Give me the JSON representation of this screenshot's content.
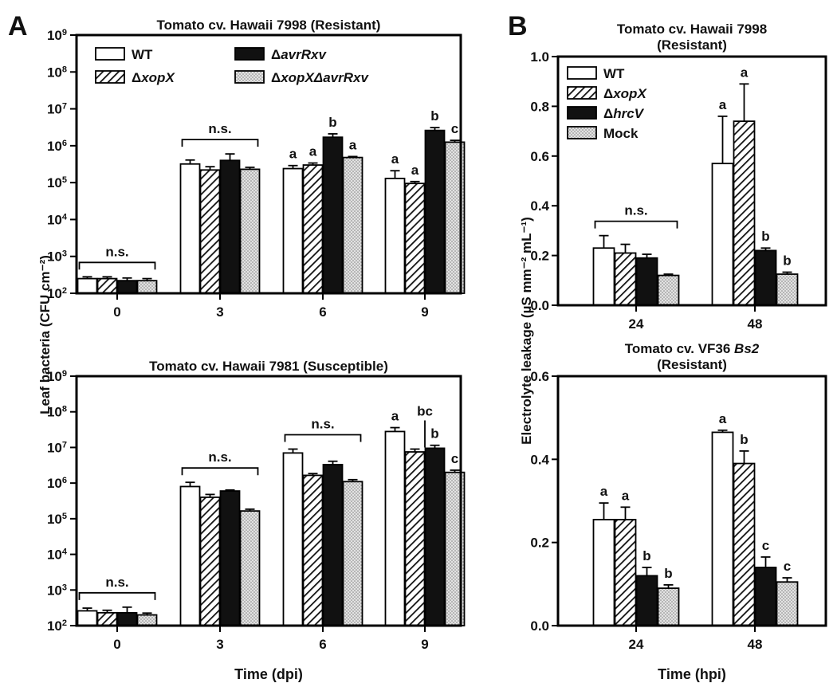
{
  "panel_labels": {
    "a": "A",
    "b": "B"
  },
  "axis_titles": {
    "a_y": "Leaf bacteria (CFU cm⁻²)",
    "b_y": "Electrolyte leakage (µS mm⁻² mL⁻¹)",
    "a_x": "Time (dpi)",
    "b_x": "Time (hpi)"
  },
  "colors": {
    "wt": "#ffffff",
    "fill_black": "#111111",
    "dots": "#d8d8d8"
  },
  "chart_data": [
    {
      "id": "a_top",
      "type": "bar",
      "scale": "log",
      "title": "Tomato cv. Hawaii 7998 (Resistant)",
      "xlabel": "",
      "ylabel": "Leaf bacteria (CFU cm-2)",
      "ylim": [
        100,
        1000000000
      ],
      "yticks": [
        {
          "b": "10",
          "e": "2"
        },
        {
          "b": "10",
          "e": "3"
        },
        {
          "b": "10",
          "e": "4"
        },
        {
          "b": "10",
          "e": "5"
        },
        {
          "b": "10",
          "e": "6"
        },
        {
          "b": "10",
          "e": "7"
        },
        {
          "b": "10",
          "e": "8"
        },
        {
          "b": "10",
          "e": "9"
        }
      ],
      "categories": [
        "0",
        "3",
        "6",
        "9"
      ],
      "legend": {
        "position": "top",
        "columns": 2
      },
      "series": [
        {
          "name": "WT",
          "prefix": "",
          "ital": "",
          "pattern": "white",
          "values": [
            250,
            320000,
            240000,
            130000
          ],
          "errors": [
            30,
            90000,
            50000,
            80000
          ],
          "letters": [
            "",
            "",
            "a",
            "a"
          ]
        },
        {
          "name": "ΔxopX",
          "prefix": "Δ",
          "ital": "xopX",
          "pattern": "hatch",
          "values": [
            250,
            220000,
            300000,
            95000
          ],
          "errors": [
            30,
            50000,
            40000,
            12000
          ],
          "letters": [
            "",
            "",
            "a",
            "a"
          ]
        },
        {
          "name": "ΔavrRxv",
          "prefix": "Δ",
          "ital": "avrRxv",
          "pattern": "black",
          "values": [
            220,
            400000,
            1700000,
            2600000
          ],
          "errors": [
            40,
            200000,
            400000,
            500000
          ],
          "letters": [
            "",
            "",
            "b",
            "b"
          ]
        },
        {
          "name": "ΔxopXΔavrRxv",
          "prefix": "Δ",
          "ital": "xopXΔavrRxv",
          "pattern": "dots",
          "values": [
            220,
            230000,
            480000,
            1250000
          ],
          "errors": [
            30,
            30000,
            30000,
            150000
          ],
          "letters": [
            "",
            "",
            "a",
            "c"
          ]
        }
      ],
      "brackets": [
        {
          "group": 0,
          "label": "n.s."
        },
        {
          "group": 1,
          "label": "n.s."
        }
      ]
    },
    {
      "id": "a_bottom",
      "type": "bar",
      "scale": "log",
      "title": "Tomato cv. Hawaii 7981 (Susceptible)",
      "xlabel": "Time (dpi)",
      "ylabel": "Leaf bacteria (CFU cm-2)",
      "ylim": [
        100,
        1000000000
      ],
      "yticks": [
        {
          "b": "10",
          "e": "2"
        },
        {
          "b": "10",
          "e": "3"
        },
        {
          "b": "10",
          "e": "4"
        },
        {
          "b": "10",
          "e": "5"
        },
        {
          "b": "10",
          "e": "6"
        },
        {
          "b": "10",
          "e": "7"
        },
        {
          "b": "10",
          "e": "8"
        },
        {
          "b": "10",
          "e": "9"
        }
      ],
      "categories": [
        "0",
        "3",
        "6",
        "9"
      ],
      "series": [
        {
          "name": "WT",
          "pattern": "white",
          "values": [
            260,
            800000,
            7000000,
            28000000
          ],
          "errors": [
            50,
            250000,
            2000000,
            8000000
          ],
          "letters": [
            "",
            "",
            "",
            "a"
          ]
        },
        {
          "name": "ΔxopX",
          "pattern": "hatch",
          "values": [
            230,
            400000,
            1650000,
            7500000
          ],
          "errors": [
            40,
            80000,
            200000,
            1500000
          ],
          "letters": [
            "",
            "",
            "",
            ""
          ]
        },
        {
          "name": "ΔavrRxv",
          "pattern": "black",
          "values": [
            230,
            600000,
            3300000,
            9500000
          ],
          "errors": [
            100,
            40000,
            800000,
            2000000
          ],
          "letters": [
            "",
            "",
            "",
            "b"
          ]
        },
        {
          "name": "ΔxopXΔavrRxv",
          "pattern": "dots",
          "values": [
            200,
            165000,
            1100000,
            2000000
          ],
          "errors": [
            25,
            20000,
            150000,
            300000
          ],
          "letters": [
            "",
            "",
            "",
            "c"
          ]
        }
      ],
      "brackets": [
        {
          "group": 0,
          "label": "n.s."
        },
        {
          "group": 1,
          "label": "n.s."
        },
        {
          "group": 2,
          "label": "n.s."
        }
      ],
      "annotation": {
        "label": "bc",
        "group": 3,
        "series": 1
      }
    },
    {
      "id": "b_top",
      "type": "bar",
      "scale": "linear",
      "title_lines": [
        "Tomato cv. Hawaii 7998",
        "(Resistant)"
      ],
      "xlabel": "",
      "ylabel": "Electrolyte leakage (µS mm-2 mL-1)",
      "ylim": [
        0,
        1.0
      ],
      "yticks": [
        "0.0",
        "0.2",
        "0.4",
        "0.6",
        "0.8",
        "1.0"
      ],
      "categories": [
        "24",
        "48"
      ],
      "legend": {
        "position": "top-left",
        "columns": 1
      },
      "series": [
        {
          "name": "WT",
          "prefix": "",
          "ital": "",
          "pattern": "white",
          "values": [
            0.23,
            0.57
          ],
          "errors": [
            0.05,
            0.19
          ],
          "letters": [
            "",
            "a"
          ]
        },
        {
          "name": "ΔxopX",
          "prefix": "Δ",
          "ital": "xopX",
          "pattern": "hatch",
          "values": [
            0.21,
            0.74
          ],
          "errors": [
            0.035,
            0.15
          ],
          "letters": [
            "",
            "a"
          ]
        },
        {
          "name": "ΔhrcV",
          "prefix": "Δ",
          "ital": "hrcV",
          "pattern": "black",
          "values": [
            0.19,
            0.22
          ],
          "errors": [
            0.015,
            0.01
          ],
          "letters": [
            "",
            "b"
          ]
        },
        {
          "name": "Mock",
          "prefix": "",
          "ital": "",
          "pattern": "dots",
          "values": [
            0.12,
            0.125
          ],
          "errors": [
            0.005,
            0.008
          ],
          "letters": [
            "",
            "b"
          ]
        }
      ],
      "brackets": [
        {
          "group": 0,
          "label": "n.s."
        }
      ]
    },
    {
      "id": "b_bottom",
      "type": "bar",
      "scale": "linear",
      "title_lines": [
        "Tomato cv. VF36 Bs2",
        "(Resistant)"
      ],
      "title_plain": "Tomato cv. VF36 ",
      "title_ital": "Bs2",
      "xlabel": "Time (hpi)",
      "ylabel": "Electrolyte leakage (µS mm-2 mL-1)",
      "ylim": [
        0,
        0.6
      ],
      "yticks": [
        "0.0",
        "0.2",
        "0.4",
        "0.6"
      ],
      "categories": [
        "24",
        "48"
      ],
      "series": [
        {
          "name": "WT",
          "pattern": "white",
          "values": [
            0.255,
            0.465
          ],
          "errors": [
            0.04,
            0.005
          ],
          "letters": [
            "a",
            "a"
          ]
        },
        {
          "name": "ΔxopX",
          "pattern": "hatch",
          "values": [
            0.255,
            0.39
          ],
          "errors": [
            0.03,
            0.03
          ],
          "letters": [
            "a",
            "b"
          ]
        },
        {
          "name": "ΔhrcV",
          "pattern": "black",
          "values": [
            0.12,
            0.14
          ],
          "errors": [
            0.02,
            0.025
          ],
          "letters": [
            "b",
            "c"
          ]
        },
        {
          "name": "Mock",
          "pattern": "dots",
          "values": [
            0.09,
            0.105
          ],
          "errors": [
            0.008,
            0.01
          ],
          "letters": [
            "b",
            "c"
          ]
        }
      ]
    }
  ]
}
